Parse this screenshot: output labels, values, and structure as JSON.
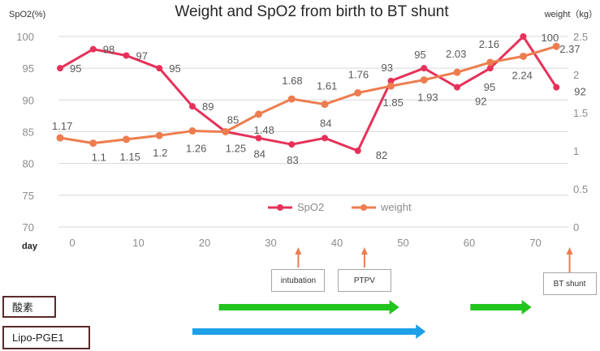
{
  "chart_data": {
    "type": "line",
    "title": "Weight and SpO2 from birth to BT shunt",
    "ylabel_left": "SpO2(%)",
    "ylabel_right": "weight（kg）",
    "xlabel": "day",
    "ylim_left": [
      70,
      100
    ],
    "ylim_right": [
      0,
      2.5
    ],
    "yticks_left": [
      70,
      75,
      80,
      85,
      90,
      95,
      100
    ],
    "yticks_right": [
      0,
      0.5,
      1,
      1.5,
      2,
      2.5
    ],
    "xticks": [
      0,
      10,
      20,
      30,
      40,
      50,
      60,
      70
    ],
    "grid": "horizontal",
    "legend_position": "bottom-center",
    "series": [
      {
        "name": "SpO2",
        "axis": "left",
        "color": "#e6325a",
        "x": [
          0,
          5,
          10,
          15,
          20,
          25,
          30,
          35,
          40,
          45,
          50,
          55,
          60,
          65,
          70,
          75
        ],
        "values": [
          95,
          98,
          97,
          95,
          89,
          85,
          84,
          83,
          84,
          82,
          93,
          95,
          92,
          95,
          100,
          92
        ],
        "labels": [
          "95",
          "98",
          "97",
          "95",
          "89",
          "85",
          "84",
          "83",
          "84",
          "82",
          "93",
          "95",
          "92",
          "95",
          "100",
          "92"
        ]
      },
      {
        "name": "weight",
        "axis": "right",
        "color": "#ed7d4f",
        "x": [
          0,
          5,
          10,
          15,
          20,
          25,
          30,
          35,
          40,
          45,
          50,
          55,
          60,
          65,
          70,
          75
        ],
        "values": [
          1.17,
          1.1,
          1.15,
          1.2,
          1.26,
          1.25,
          1.48,
          1.68,
          1.61,
          1.76,
          1.85,
          1.93,
          2.03,
          2.16,
          2.24,
          2.37
        ],
        "labels": [
          "1.17",
          "1.1",
          "1.15",
          "1.2",
          "1.26",
          "1.25",
          "1.48",
          "1.68",
          "1.61",
          "1.76",
          "1.85",
          "1.93",
          "2.03",
          "2.16",
          "2.24",
          "2.37"
        ]
      }
    ],
    "events": [
      {
        "label": "intubation",
        "day": 36,
        "color": "#ed7d4f"
      },
      {
        "label": "PTPV",
        "day": 46,
        "color": "#ed7d4f"
      },
      {
        "label": "BT shunt",
        "day": 77,
        "color": "#ed7d4f"
      }
    ],
    "treatments": [
      {
        "label": "酸素",
        "color": "#22c41e",
        "segments": [
          [
            24,
            51
          ],
          [
            62,
            71
          ]
        ]
      },
      {
        "label": "Lipo-PGE1",
        "color": "#1ea0e8",
        "segments": [
          [
            20,
            55
          ]
        ]
      }
    ]
  }
}
